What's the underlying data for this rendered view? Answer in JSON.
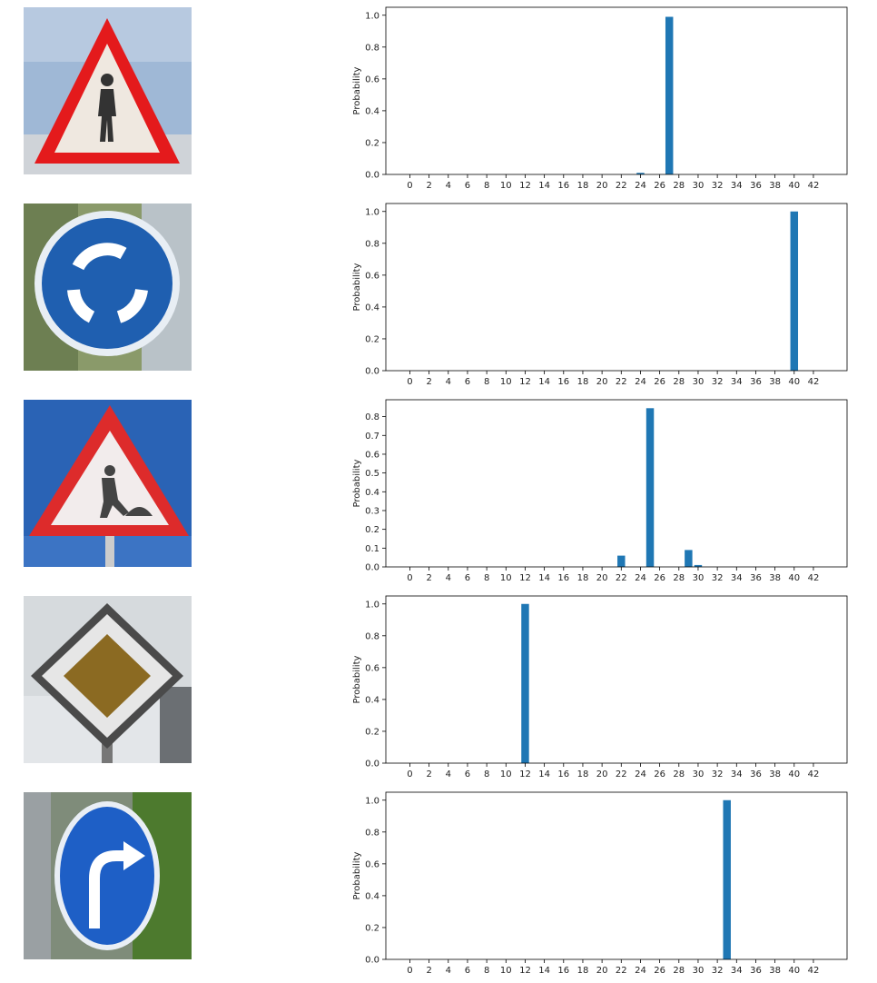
{
  "chart_data": [
    {
      "type": "bar",
      "ylabel": "Probability",
      "xlim": [
        -2.5,
        45.5
      ],
      "ylim": [
        0,
        1.05
      ],
      "yticks": [
        "0.0",
        "0.2",
        "0.4",
        "0.6",
        "0.8",
        "1.0"
      ],
      "ytick_values": [
        0,
        0.2,
        0.4,
        0.6,
        0.8,
        1.0
      ],
      "xticks": [
        "0",
        "2",
        "4",
        "6",
        "8",
        "10",
        "12",
        "14",
        "16",
        "18",
        "20",
        "22",
        "24",
        "26",
        "28",
        "30",
        "32",
        "34",
        "36",
        "38",
        "40",
        "42"
      ],
      "bars": [
        {
          "x": 24,
          "value": 0.01
        },
        {
          "x": 27,
          "value": 0.99
        }
      ],
      "color": "#1f77b4"
    },
    {
      "type": "bar",
      "ylabel": "Probability",
      "xlim": [
        -2.5,
        45.5
      ],
      "ylim": [
        0,
        1.05
      ],
      "yticks": [
        "0.0",
        "0.2",
        "0.4",
        "0.6",
        "0.8",
        "1.0"
      ],
      "ytick_values": [
        0,
        0.2,
        0.4,
        0.6,
        0.8,
        1.0
      ],
      "xticks": [
        "0",
        "2",
        "4",
        "6",
        "8",
        "10",
        "12",
        "14",
        "16",
        "18",
        "20",
        "22",
        "24",
        "26",
        "28",
        "30",
        "32",
        "34",
        "36",
        "38",
        "40",
        "42"
      ],
      "bars": [
        {
          "x": 40,
          "value": 1.0
        }
      ],
      "color": "#1f77b4"
    },
    {
      "type": "bar",
      "ylabel": "Probability",
      "xlim": [
        -2.5,
        45.5
      ],
      "ylim": [
        0,
        0.89
      ],
      "yticks": [
        "0.0",
        "0.1",
        "0.2",
        "0.3",
        "0.4",
        "0.5",
        "0.6",
        "0.7",
        "0.8"
      ],
      "ytick_values": [
        0,
        0.1,
        0.2,
        0.3,
        0.4,
        0.5,
        0.6,
        0.7,
        0.8
      ],
      "xticks": [
        "0",
        "2",
        "4",
        "6",
        "8",
        "10",
        "12",
        "14",
        "16",
        "18",
        "20",
        "22",
        "24",
        "26",
        "28",
        "30",
        "32",
        "34",
        "36",
        "38",
        "40",
        "42"
      ],
      "bars": [
        {
          "x": 22,
          "value": 0.06
        },
        {
          "x": 25,
          "value": 0.845
        },
        {
          "x": 29,
          "value": 0.09
        },
        {
          "x": 30,
          "value": 0.01
        }
      ],
      "color": "#1f77b4"
    },
    {
      "type": "bar",
      "ylabel": "Probability",
      "xlim": [
        -2.5,
        45.5
      ],
      "ylim": [
        0,
        1.05
      ],
      "yticks": [
        "0.0",
        "0.2",
        "0.4",
        "0.6",
        "0.8",
        "1.0"
      ],
      "ytick_values": [
        0,
        0.2,
        0.4,
        0.6,
        0.8,
        1.0
      ],
      "xticks": [
        "0",
        "2",
        "4",
        "6",
        "8",
        "10",
        "12",
        "14",
        "16",
        "18",
        "20",
        "22",
        "24",
        "26",
        "28",
        "30",
        "32",
        "34",
        "36",
        "38",
        "40",
        "42"
      ],
      "bars": [
        {
          "x": 12,
          "value": 1.0
        }
      ],
      "color": "#1f77b4"
    },
    {
      "type": "bar",
      "ylabel": "Probability",
      "xlim": [
        -2.5,
        45.5
      ],
      "ylim": [
        0,
        1.05
      ],
      "yticks": [
        "0.0",
        "0.2",
        "0.4",
        "0.6",
        "0.8",
        "1.0"
      ],
      "ytick_values": [
        0,
        0.2,
        0.4,
        0.6,
        0.8,
        1.0
      ],
      "xticks": [
        "0",
        "2",
        "4",
        "6",
        "8",
        "10",
        "12",
        "14",
        "16",
        "18",
        "20",
        "22",
        "24",
        "26",
        "28",
        "30",
        "32",
        "34",
        "36",
        "38",
        "40",
        "42"
      ],
      "bars": [
        {
          "x": 33,
          "value": 1.0
        }
      ],
      "color": "#1f77b4"
    }
  ],
  "signs": [
    {
      "icon": "pedestrians-sign-icon"
    },
    {
      "icon": "roundabout-sign-icon"
    },
    {
      "icon": "road-work-sign-icon"
    },
    {
      "icon": "priority-road-sign-icon"
    },
    {
      "icon": "turn-right-ahead-sign-icon"
    }
  ]
}
